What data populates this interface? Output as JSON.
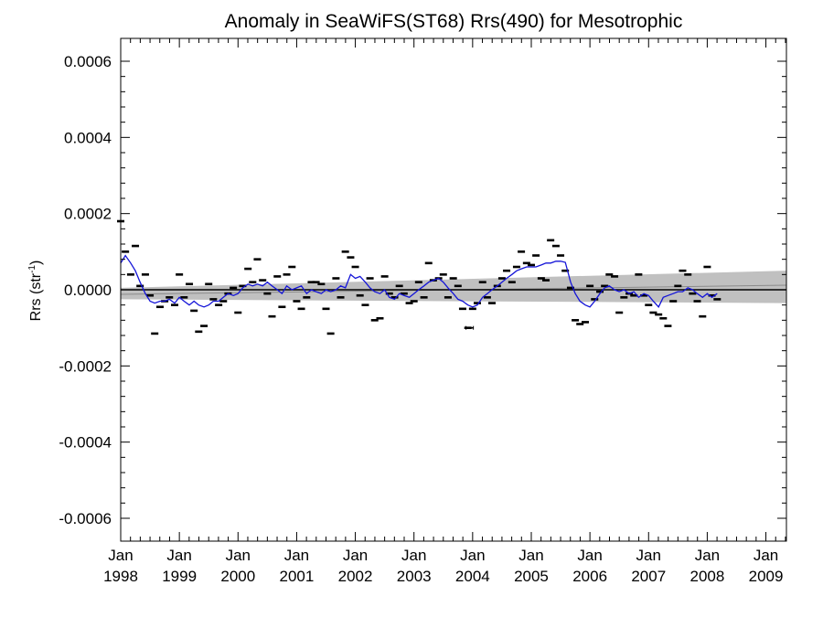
{
  "chart_data": {
    "type": "scatter",
    "title": "Anomaly in SeaWiFS(ST68) Rrs(490) for Mesotrophic",
    "ylabel": "Rrs (str",
    "ylabel_sup": "-1",
    "ylabel_close": ")",
    "xlim": [
      1998.0,
      2009.35
    ],
    "ylim": [
      -0.00066,
      0.00066
    ],
    "yticks": [
      {
        "value": 0.0006,
        "label": "0.0006"
      },
      {
        "value": 0.0004,
        "label": "0.0004"
      },
      {
        "value": 0.0002,
        "label": "0.0002"
      },
      {
        "value": 0.0,
        "label": "0.0000"
      },
      {
        "value": -0.0002,
        "label": "-0.0002"
      },
      {
        "value": -0.0004,
        "label": "-0.0004"
      },
      {
        "value": -0.0006,
        "label": "-0.0006"
      }
    ],
    "xticks": [
      {
        "value": 1998.0,
        "month": "Jan",
        "year": "1998"
      },
      {
        "value": 1999.0,
        "month": "Jan",
        "year": "1999"
      },
      {
        "value": 2000.0,
        "month": "Jan",
        "year": "2000"
      },
      {
        "value": 2001.0,
        "month": "Jan",
        "year": "2001"
      },
      {
        "value": 2002.0,
        "month": "Jan",
        "year": "2002"
      },
      {
        "value": 2003.0,
        "month": "Jan",
        "year": "2003"
      },
      {
        "value": 2004.0,
        "month": "Jan",
        "year": "2004"
      },
      {
        "value": 2005.0,
        "month": "Jan",
        "year": "2005"
      },
      {
        "value": 2006.0,
        "month": "Jan",
        "year": "2006"
      },
      {
        "value": 2007.0,
        "month": "Jan",
        "year": "2007"
      },
      {
        "value": 2008.0,
        "month": "Jan",
        "year": "2008"
      },
      {
        "value": 2009.0,
        "month": "Jan",
        "year": "2009"
      }
    ],
    "zero_line": 0.0,
    "trend_band": {
      "start_x": 1998.0,
      "end_x": 2009.35,
      "start_center": -1.2e-05,
      "end_center": 1.2e-05,
      "start_low": -2.5e-05,
      "start_high": 5e-06,
      "end_low": -3.5e-05,
      "end_high": 5e-05
    },
    "monthly_anomalies": [
      {
        "x": 1998.0,
        "y": 0.00018
      },
      {
        "x": 1998.08,
        "y": 0.0001
      },
      {
        "x": 1998.17,
        "y": 4e-05
      },
      {
        "x": 1998.25,
        "y": 0.000115
      },
      {
        "x": 1998.33,
        "y": 1e-05
      },
      {
        "x": 1998.42,
        "y": 4e-05
      },
      {
        "x": 1998.5,
        "y": -1.5e-05
      },
      {
        "x": 1998.58,
        "y": -0.000115
      },
      {
        "x": 1998.67,
        "y": -4.5e-05
      },
      {
        "x": 1998.75,
        "y": -3e-05
      },
      {
        "x": 1998.83,
        "y": -2e-05
      },
      {
        "x": 1998.92,
        "y": -4e-05
      },
      {
        "x": 1999.0,
        "y": 4e-05
      },
      {
        "x": 1999.08,
        "y": -2e-05
      },
      {
        "x": 1999.17,
        "y": 1.5e-05
      },
      {
        "x": 1999.25,
        "y": -5.5e-05
      },
      {
        "x": 1999.33,
        "y": -0.00011
      },
      {
        "x": 1999.42,
        "y": -9.5e-05
      },
      {
        "x": 1999.5,
        "y": 1.5e-05
      },
      {
        "x": 1999.58,
        "y": -2.5e-05
      },
      {
        "x": 1999.67,
        "y": -4e-05
      },
      {
        "x": 1999.75,
        "y": -3e-05
      },
      {
        "x": 1999.83,
        "y": -1e-05
      },
      {
        "x": 1999.92,
        "y": 5e-06
      },
      {
        "x": 2000.0,
        "y": -6e-05
      },
      {
        "x": 2000.08,
        "y": 1e-05
      },
      {
        "x": 2000.17,
        "y": 5.5e-05
      },
      {
        "x": 2000.25,
        "y": 2e-05
      },
      {
        "x": 2000.33,
        "y": 8e-05
      },
      {
        "x": 2000.42,
        "y": 2.5e-05
      },
      {
        "x": 2000.5,
        "y": -1e-05
      },
      {
        "x": 2000.58,
        "y": -7e-05
      },
      {
        "x": 2000.67,
        "y": 3.5e-05
      },
      {
        "x": 2000.75,
        "y": -4.5e-05
      },
      {
        "x": 2000.83,
        "y": 4e-05
      },
      {
        "x": 2000.92,
        "y": 6e-05
      },
      {
        "x": 2001.0,
        "y": -3e-05
      },
      {
        "x": 2001.08,
        "y": -5e-05
      },
      {
        "x": 2001.17,
        "y": -2e-05
      },
      {
        "x": 2001.25,
        "y": 2e-05
      },
      {
        "x": 2001.33,
        "y": 2e-05
      },
      {
        "x": 2001.42,
        "y": 1.5e-05
      },
      {
        "x": 2001.5,
        "y": -5e-05
      },
      {
        "x": 2001.58,
        "y": -0.000115
      },
      {
        "x": 2001.67,
        "y": 3e-05
      },
      {
        "x": 2001.75,
        "y": -2e-05
      },
      {
        "x": 2001.83,
        "y": 0.0001
      },
      {
        "x": 2001.92,
        "y": 8.5e-05
      },
      {
        "x": 2002.0,
        "y": 6e-05
      },
      {
        "x": 2002.08,
        "y": -1.5e-05
      },
      {
        "x": 2002.17,
        "y": -4e-05
      },
      {
        "x": 2002.25,
        "y": 3e-05
      },
      {
        "x": 2002.33,
        "y": -8e-05
      },
      {
        "x": 2002.42,
        "y": -7.5e-05
      },
      {
        "x": 2002.5,
        "y": 3.5e-05
      },
      {
        "x": 2002.58,
        "y": -1e-05
      },
      {
        "x": 2002.67,
        "y": -2e-05
      },
      {
        "x": 2002.75,
        "y": 1e-05
      },
      {
        "x": 2002.83,
        "y": -1e-05
      },
      {
        "x": 2002.92,
        "y": -3.5e-05
      },
      {
        "x": 2003.0,
        "y": -3e-05
      },
      {
        "x": 2003.08,
        "y": 2e-05
      },
      {
        "x": 2003.17,
        "y": -2e-05
      },
      {
        "x": 2003.25,
        "y": 7e-05
      },
      {
        "x": 2003.33,
        "y": 2.5e-05
      },
      {
        "x": 2003.42,
        "y": 3e-05
      },
      {
        "x": 2003.5,
        "y": 4e-05
      },
      {
        "x": 2003.58,
        "y": -2e-05
      },
      {
        "x": 2003.67,
        "y": 3e-05
      },
      {
        "x": 2003.75,
        "y": 1e-05
      },
      {
        "x": 2003.83,
        "y": -5e-05
      },
      {
        "x": 2003.92,
        "y": -0.0001
      },
      {
        "x": 2004.0,
        "y": -5e-05
      },
      {
        "x": 2004.08,
        "y": -3.5e-05
      },
      {
        "x": 2004.17,
        "y": 2e-05
      },
      {
        "x": 2004.25,
        "y": -2e-05
      },
      {
        "x": 2004.33,
        "y": -3.5e-05
      },
      {
        "x": 2004.42,
        "y": 1e-05
      },
      {
        "x": 2004.5,
        "y": 3e-05
      },
      {
        "x": 2004.58,
        "y": 5e-05
      },
      {
        "x": 2004.67,
        "y": 2e-05
      },
      {
        "x": 2004.75,
        "y": 6e-05
      },
      {
        "x": 2004.83,
        "y": 0.0001
      },
      {
        "x": 2004.92,
        "y": 7e-05
      },
      {
        "x": 2005.0,
        "y": 6.5e-05
      },
      {
        "x": 2005.08,
        "y": 9e-05
      },
      {
        "x": 2005.17,
        "y": 3e-05
      },
      {
        "x": 2005.25,
        "y": 2.5e-05
      },
      {
        "x": 2005.33,
        "y": 0.00013
      },
      {
        "x": 2005.42,
        "y": 0.000115
      },
      {
        "x": 2005.5,
        "y": 9e-05
      },
      {
        "x": 2005.58,
        "y": 5e-05
      },
      {
        "x": 2005.67,
        "y": 5e-06
      },
      {
        "x": 2005.75,
        "y": -8e-05
      },
      {
        "x": 2005.83,
        "y": -9e-05
      },
      {
        "x": 2005.92,
        "y": -8.5e-05
      },
      {
        "x": 2006.0,
        "y": 1e-05
      },
      {
        "x": 2006.08,
        "y": -2.5e-05
      },
      {
        "x": 2006.17,
        "y": -5e-06
      },
      {
        "x": 2006.25,
        "y": 1e-05
      },
      {
        "x": 2006.33,
        "y": 4e-05
      },
      {
        "x": 2006.42,
        "y": 3.5e-05
      },
      {
        "x": 2006.5,
        "y": -6e-05
      },
      {
        "x": 2006.58,
        "y": -2e-05
      },
      {
        "x": 2006.67,
        "y": -1e-05
      },
      {
        "x": 2006.75,
        "y": -1.5e-05
      },
      {
        "x": 2006.83,
        "y": 4e-05
      },
      {
        "x": 2006.92,
        "y": -1.5e-05
      },
      {
        "x": 2007.0,
        "y": -4e-05
      },
      {
        "x": 2007.08,
        "y": -6e-05
      },
      {
        "x": 2007.17,
        "y": -6.5e-05
      },
      {
        "x": 2007.25,
        "y": -7.5e-05
      },
      {
        "x": 2007.33,
        "y": -9.5e-05
      },
      {
        "x": 2007.42,
        "y": -3e-05
      },
      {
        "x": 2007.5,
        "y": 1e-05
      },
      {
        "x": 2007.58,
        "y": 5e-05
      },
      {
        "x": 2007.67,
        "y": 4e-05
      },
      {
        "x": 2007.75,
        "y": -1e-05
      },
      {
        "x": 2007.83,
        "y": -3e-05
      },
      {
        "x": 2007.92,
        "y": -7e-05
      },
      {
        "x": 2008.0,
        "y": 6e-05
      },
      {
        "x": 2008.08,
        "y": -1.5e-05
      },
      {
        "x": 2008.17,
        "y": -2.5e-05
      }
    ],
    "errorbar_points": [
      {
        "x": 2003.95,
        "y": -0.0001
      }
    ],
    "smoothed_series": [
      {
        "x": 1998.0,
        "y": 7e-05
      },
      {
        "x": 1998.08,
        "y": 9e-05
      },
      {
        "x": 1998.17,
        "y": 7e-05
      },
      {
        "x": 1998.25,
        "y": 5e-05
      },
      {
        "x": 1998.33,
        "y": 2e-05
      },
      {
        "x": 1998.42,
        "y": -1e-05
      },
      {
        "x": 1998.5,
        "y": -3e-05
      },
      {
        "x": 1998.58,
        "y": -3.5e-05
      },
      {
        "x": 1998.67,
        "y": -3e-05
      },
      {
        "x": 1998.75,
        "y": -3e-05
      },
      {
        "x": 1998.83,
        "y": -2.5e-05
      },
      {
        "x": 1998.92,
        "y": -3.5e-05
      },
      {
        "x": 1999.0,
        "y": -2e-05
      },
      {
        "x": 1999.08,
        "y": -3e-05
      },
      {
        "x": 1999.17,
        "y": -4e-05
      },
      {
        "x": 1999.25,
        "y": -3e-05
      },
      {
        "x": 1999.33,
        "y": -4e-05
      },
      {
        "x": 1999.42,
        "y": -4.5e-05
      },
      {
        "x": 1999.5,
        "y": -4e-05
      },
      {
        "x": 1999.58,
        "y": -3e-05
      },
      {
        "x": 1999.67,
        "y": -3e-05
      },
      {
        "x": 1999.75,
        "y": -2e-05
      },
      {
        "x": 1999.83,
        "y": -1e-05
      },
      {
        "x": 1999.92,
        "y": -1.5e-05
      },
      {
        "x": 2000.0,
        "y": -1e-05
      },
      {
        "x": 2000.08,
        "y": 5e-06
      },
      {
        "x": 2000.17,
        "y": 1.5e-05
      },
      {
        "x": 2000.25,
        "y": 1e-05
      },
      {
        "x": 2000.33,
        "y": 1.5e-05
      },
      {
        "x": 2000.42,
        "y": 1e-05
      },
      {
        "x": 2000.5,
        "y": 2e-05
      },
      {
        "x": 2000.58,
        "y": 1e-05
      },
      {
        "x": 2000.67,
        "y": 0.0
      },
      {
        "x": 2000.75,
        "y": -1e-05
      },
      {
        "x": 2000.83,
        "y": 1e-05
      },
      {
        "x": 2000.92,
        "y": 0.0
      },
      {
        "x": 2001.0,
        "y": 5e-06
      },
      {
        "x": 2001.08,
        "y": 1e-05
      },
      {
        "x": 2001.17,
        "y": -1e-05
      },
      {
        "x": 2001.25,
        "y": 0.0
      },
      {
        "x": 2001.33,
        "y": -5e-06
      },
      {
        "x": 2001.42,
        "y": -1e-05
      },
      {
        "x": 2001.5,
        "y": 0.0
      },
      {
        "x": 2001.58,
        "y": -5e-06
      },
      {
        "x": 2001.67,
        "y": 0.0
      },
      {
        "x": 2001.75,
        "y": 1e-05
      },
      {
        "x": 2001.83,
        "y": 5e-06
      },
      {
        "x": 2001.92,
        "y": 4e-05
      },
      {
        "x": 2002.0,
        "y": 3e-05
      },
      {
        "x": 2002.08,
        "y": 3.5e-05
      },
      {
        "x": 2002.17,
        "y": 2e-05
      },
      {
        "x": 2002.25,
        "y": 5e-06
      },
      {
        "x": 2002.33,
        "y": -5e-06
      },
      {
        "x": 2002.42,
        "y": -1e-05
      },
      {
        "x": 2002.5,
        "y": 0.0
      },
      {
        "x": 2002.58,
        "y": -2e-05
      },
      {
        "x": 2002.67,
        "y": -2.5e-05
      },
      {
        "x": 2002.75,
        "y": -1e-05
      },
      {
        "x": 2002.83,
        "y": -1.5e-05
      },
      {
        "x": 2002.92,
        "y": -2e-05
      },
      {
        "x": 2003.0,
        "y": -1e-05
      },
      {
        "x": 2003.08,
        "y": 0.0
      },
      {
        "x": 2003.17,
        "y": 1e-05
      },
      {
        "x": 2003.25,
        "y": 2e-05
      },
      {
        "x": 2003.33,
        "y": 2.5e-05
      },
      {
        "x": 2003.42,
        "y": 3e-05
      },
      {
        "x": 2003.5,
        "y": 2e-05
      },
      {
        "x": 2003.58,
        "y": 5e-06
      },
      {
        "x": 2003.67,
        "y": -1e-05
      },
      {
        "x": 2003.75,
        "y": -2.5e-05
      },
      {
        "x": 2003.83,
        "y": -3e-05
      },
      {
        "x": 2003.92,
        "y": -4e-05
      },
      {
        "x": 2004.0,
        "y": -4.5e-05
      },
      {
        "x": 2004.08,
        "y": -4e-05
      },
      {
        "x": 2004.17,
        "y": -2e-05
      },
      {
        "x": 2004.25,
        "y": -1e-05
      },
      {
        "x": 2004.33,
        "y": 0.0
      },
      {
        "x": 2004.42,
        "y": 1e-05
      },
      {
        "x": 2004.5,
        "y": 2e-05
      },
      {
        "x": 2004.58,
        "y": 3e-05
      },
      {
        "x": 2004.67,
        "y": 4e-05
      },
      {
        "x": 2004.75,
        "y": 5e-05
      },
      {
        "x": 2004.83,
        "y": 5.5e-05
      },
      {
        "x": 2004.92,
        "y": 6e-05
      },
      {
        "x": 2005.0,
        "y": 6e-05
      },
      {
        "x": 2005.08,
        "y": 6e-05
      },
      {
        "x": 2005.17,
        "y": 6.5e-05
      },
      {
        "x": 2005.25,
        "y": 7e-05
      },
      {
        "x": 2005.33,
        "y": 7e-05
      },
      {
        "x": 2005.42,
        "y": 7.5e-05
      },
      {
        "x": 2005.5,
        "y": 7.5e-05
      },
      {
        "x": 2005.58,
        "y": 7.2e-05
      },
      {
        "x": 2005.67,
        "y": 2e-05
      },
      {
        "x": 2005.75,
        "y": -1e-05
      },
      {
        "x": 2005.83,
        "y": -3e-05
      },
      {
        "x": 2005.92,
        "y": -4e-05
      },
      {
        "x": 2006.0,
        "y": -4.5e-05
      },
      {
        "x": 2006.08,
        "y": -3e-05
      },
      {
        "x": 2006.17,
        "y": -1e-05
      },
      {
        "x": 2006.25,
        "y": 5e-06
      },
      {
        "x": 2006.33,
        "y": 1e-05
      },
      {
        "x": 2006.42,
        "y": 0.0
      },
      {
        "x": 2006.5,
        "y": -5e-06
      },
      {
        "x": 2006.58,
        "y": 0.0
      },
      {
        "x": 2006.67,
        "y": -1e-05
      },
      {
        "x": 2006.75,
        "y": -5e-06
      },
      {
        "x": 2006.83,
        "y": -2e-05
      },
      {
        "x": 2006.92,
        "y": -1e-05
      },
      {
        "x": 2007.0,
        "y": -1.5e-05
      },
      {
        "x": 2007.08,
        "y": -3e-05
      },
      {
        "x": 2007.17,
        "y": -4.5e-05
      },
      {
        "x": 2007.25,
        "y": -2e-05
      },
      {
        "x": 2007.33,
        "y": -1.5e-05
      },
      {
        "x": 2007.42,
        "y": -1e-05
      },
      {
        "x": 2007.5,
        "y": -5e-06
      },
      {
        "x": 2007.58,
        "y": -5e-06
      },
      {
        "x": 2007.67,
        "y": 5e-06
      },
      {
        "x": 2007.75,
        "y": 0.0
      },
      {
        "x": 2007.83,
        "y": -1e-05
      },
      {
        "x": 2007.92,
        "y": -2e-05
      },
      {
        "x": 2008.0,
        "y": -1e-05
      },
      {
        "x": 2008.08,
        "y": -2e-05
      },
      {
        "x": 2008.17,
        "y": -1e-05
      }
    ],
    "colors": {
      "series_line": "#1414d8",
      "markers": "#000000",
      "band": "#c0c0c0",
      "zero_line": "#000000",
      "axes": "#000000"
    },
    "grid": false
  }
}
